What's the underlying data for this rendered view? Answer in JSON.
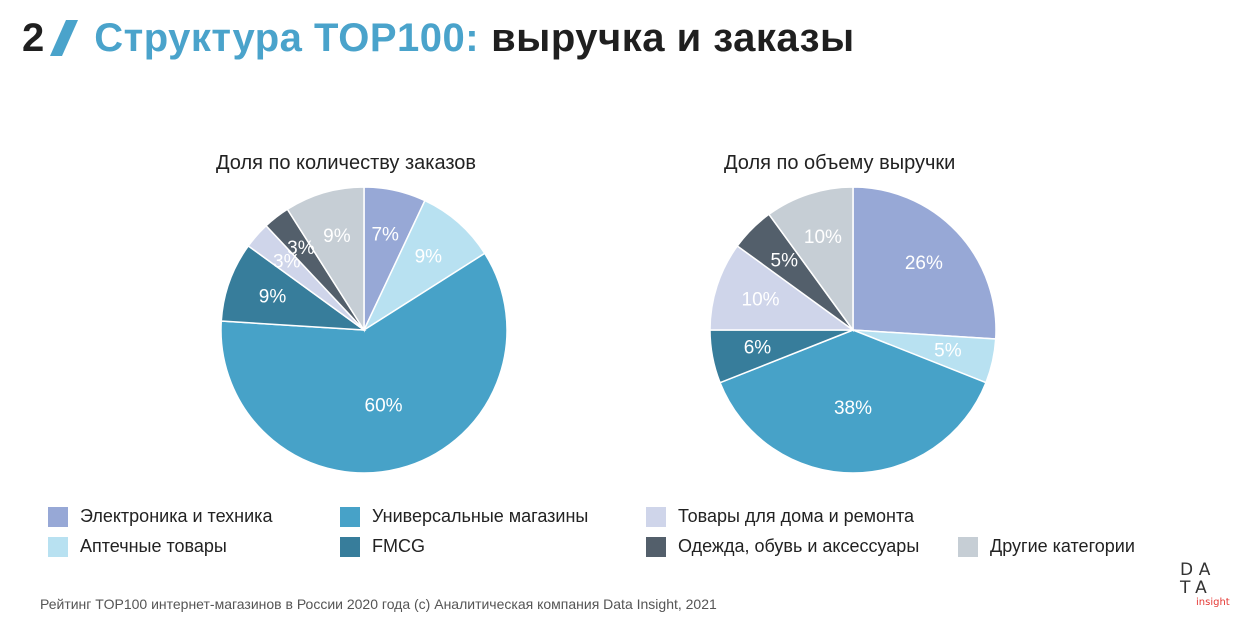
{
  "header": {
    "slide_number": "2",
    "title_accent": "Структура TOP100:",
    "title_rest": "выручка и заказы"
  },
  "colors": {
    "accent": "#4aa3cb",
    "electronics": "#97a8d6",
    "pharmacy": "#b8e1f1",
    "universal": "#47a2c8",
    "fmcg": "#377d9b",
    "home": "#cfd5ea",
    "clothing": "#535f6b",
    "other": "#c6ced5"
  },
  "legend": [
    {
      "key": "electronics",
      "label": "Электроника и техника"
    },
    {
      "key": "universal",
      "label": "Универсальные магазины"
    },
    {
      "key": "home",
      "label": "Товары для дома и ремонта"
    },
    {
      "key": "pharmacy",
      "label": "Аптечные товары"
    },
    {
      "key": "fmcg",
      "label": "FMCG"
    },
    {
      "key": "clothing",
      "label": "Одежда, обувь и аксессуары"
    },
    {
      "key": "other",
      "label": "Другие категории"
    }
  ],
  "chart_data": [
    {
      "type": "pie",
      "title": "Доля по количеству заказов",
      "unit": "%",
      "slices": [
        {
          "key": "electronics",
          "name": "Электроника и техника",
          "value": 7,
          "label": "7%"
        },
        {
          "key": "pharmacy",
          "name": "Аптечные товары",
          "value": 9,
          "label": "9%"
        },
        {
          "key": "universal",
          "name": "Универсальные магазины",
          "value": 60,
          "label": "60%"
        },
        {
          "key": "fmcg",
          "name": "FMCG",
          "value": 9,
          "label": "9%"
        },
        {
          "key": "home",
          "name": "Товары для дома и ремонта",
          "value": 3,
          "label": "3%"
        },
        {
          "key": "clothing",
          "name": "Одежда, обувь и аксессуары",
          "value": 3,
          "label": "3%"
        },
        {
          "key": "other",
          "name": "Другие категории",
          "value": 9,
          "label": "9%"
        }
      ]
    },
    {
      "type": "pie",
      "title": "Доля по объему выручки",
      "unit": "%",
      "slices": [
        {
          "key": "electronics",
          "name": "Электроника и техника",
          "value": 26,
          "label": "26%"
        },
        {
          "key": "pharmacy",
          "name": "Аптечные товары",
          "value": 5,
          "label": "5%"
        },
        {
          "key": "universal",
          "name": "Универсальные магазины",
          "value": 38,
          "label": "38%"
        },
        {
          "key": "fmcg",
          "name": "FMCG",
          "value": 6,
          "label": "6%"
        },
        {
          "key": "home",
          "name": "Товары для дома и ремонта",
          "value": 10,
          "label": "10%"
        },
        {
          "key": "clothing",
          "name": "Одежда, обувь и аксессуары",
          "value": 5,
          "label": "5%"
        },
        {
          "key": "other",
          "name": "Другие категории",
          "value": 10,
          "label": "10%"
        }
      ]
    }
  ],
  "footer": {
    "source": "Рейтинг TOP100 интернет-магазинов в России 2020 года (c) Аналитическая компания Data Insight, 2021"
  },
  "logo": {
    "line1": "DA",
    "line2": "TA",
    "line3": "insight"
  }
}
